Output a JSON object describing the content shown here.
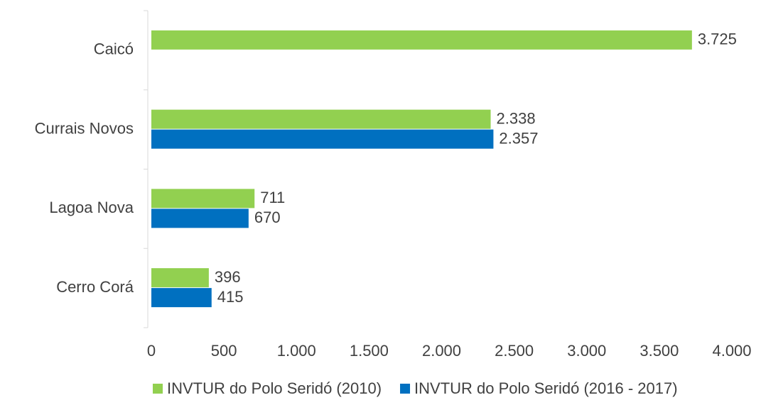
{
  "chart_data": {
    "type": "hbar",
    "categories": [
      "Caicó",
      "Currais Novos",
      "Lagoa Nova",
      "Cerro Corá"
    ],
    "series": [
      {
        "name": "INVTUR do Polo Seridó (2010)",
        "color": "#92d050",
        "values": [
          3725,
          2338,
          711,
          396
        ],
        "value_labels": [
          "3.725",
          "2.338",
          "711",
          "396"
        ]
      },
      {
        "name": "INVTUR do Polo Seridó (2016 - 2017)",
        "color": "#0070c0",
        "values": [
          null,
          2357,
          670,
          415
        ],
        "value_labels": [
          null,
          "2.357",
          "670",
          "415"
        ]
      }
    ],
    "xlim": [
      0,
      4000
    ],
    "xticks": [
      0,
      500,
      {
        "value": 1000,
        "label": "1.000"
      },
      {
        "value": 1500,
        "label": "1.500"
      },
      {
        "value": 2000,
        "label": "2.000"
      },
      {
        "value": 2500,
        "label": "2.500"
      },
      {
        "value": 3000,
        "label": "3.000"
      },
      {
        "value": 3500,
        "label": "3.500"
      },
      {
        "value": 4000,
        "label": "4.000"
      }
    ],
    "grid": false,
    "legend": "bottom"
  }
}
